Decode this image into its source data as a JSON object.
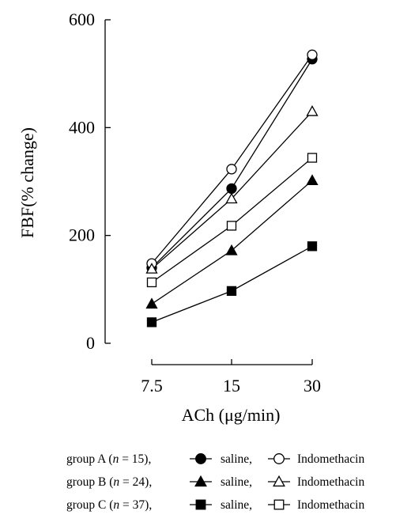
{
  "chart_data": {
    "type": "line",
    "title": "",
    "xlabel_prefix": "ACh (",
    "xlabel_unit": "μg/min",
    "xlabel_suffix": ")",
    "ylabel": "FBF(% change)",
    "categories": [
      "7.5",
      "15",
      "30"
    ],
    "ylim": [
      0,
      600
    ],
    "yticks": [
      "0",
      "200",
      "400",
      "600"
    ],
    "grid": false,
    "legend_position": "bottom",
    "series": [
      {
        "group": "A",
        "condition": "saline",
        "marker": "filled-circle",
        "values": [
          140,
          287,
          527
        ]
      },
      {
        "group": "A",
        "condition": "Indomethacin",
        "marker": "open-circle",
        "values": [
          148,
          323,
          535
        ]
      },
      {
        "group": "B",
        "condition": "saline",
        "marker": "filled-triangle",
        "values": [
          73,
          172,
          302
        ]
      },
      {
        "group": "B",
        "condition": "Indomethacin",
        "marker": "open-triangle",
        "values": [
          138,
          268,
          430
        ]
      },
      {
        "group": "C",
        "condition": "saline",
        "marker": "filled-square",
        "values": [
          39,
          97,
          180
        ]
      },
      {
        "group": "C",
        "condition": "Indomethacin",
        "marker": "open-square",
        "values": [
          113,
          218,
          344
        ]
      }
    ],
    "legend": [
      {
        "group_prefix": "group A (",
        "n_symbol": "n",
        "n_text": " = 15),",
        "saline_marker": "filled-circle",
        "saline_label": "saline,",
        "indo_marker": "open-circle",
        "indo_label": "Indomethacin"
      },
      {
        "group_prefix": "group B (",
        "n_symbol": "n",
        "n_text": " = 24),",
        "saline_marker": "filled-triangle",
        "saline_label": "saline,",
        "indo_marker": "open-triangle",
        "indo_label": "Indomethacin"
      },
      {
        "group_prefix": "group C (",
        "n_symbol": "n",
        "n_text": " = 37),",
        "saline_marker": "filled-square",
        "saline_label": "saline,",
        "indo_marker": "open-square",
        "indo_label": "Indomethacin"
      }
    ]
  }
}
